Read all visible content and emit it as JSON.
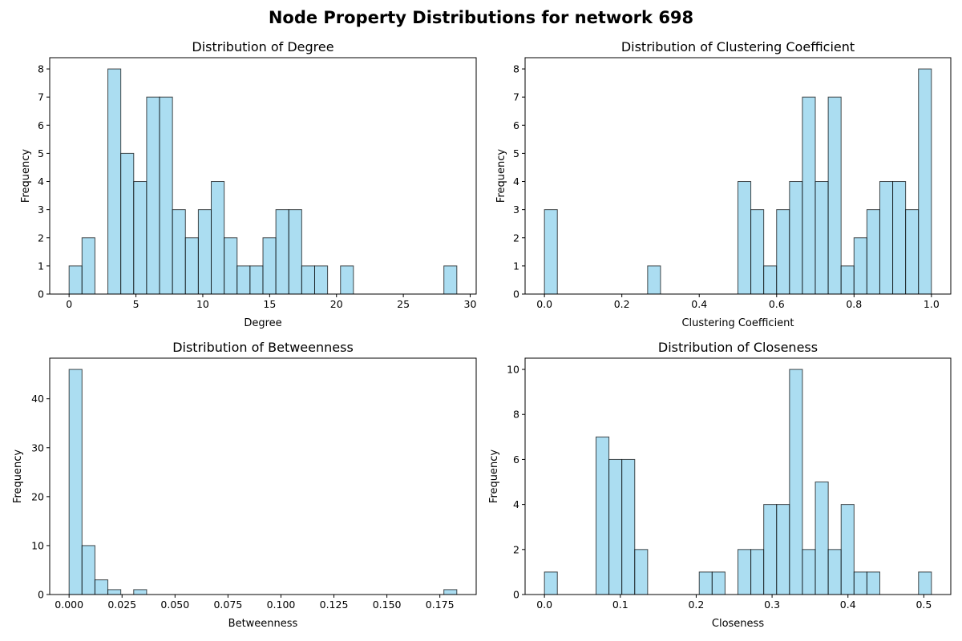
{
  "suptitle": "Node Property Distributions for network 698",
  "style": {
    "bar_fill": "#87ceeb",
    "bar_alpha": 0.7,
    "bar_edge": "#000000"
  },
  "chart_data": [
    {
      "type": "bar",
      "title": "Distribution of Degree",
      "xlabel": "Degree",
      "ylabel": "Frequency",
      "bin_start": 0,
      "bin_width": 0.9667,
      "values": [
        1,
        2,
        0,
        8,
        5,
        4,
        7,
        7,
        3,
        2,
        3,
        4,
        2,
        1,
        1,
        2,
        3,
        3,
        1,
        1,
        0,
        1,
        0,
        0,
        0,
        0,
        0,
        0,
        0,
        1
      ],
      "xlim": [
        -1.45,
        30.45
      ],
      "ylim": [
        0,
        8.4
      ],
      "xticks": [
        0,
        5,
        10,
        15,
        20,
        25,
        30
      ],
      "xtick_labels": [
        "0",
        "5",
        "10",
        "15",
        "20",
        "25",
        "30"
      ],
      "yticks": [
        0,
        1,
        2,
        3,
        4,
        5,
        6,
        7,
        8
      ],
      "ytick_labels": [
        "0",
        "1",
        "2",
        "3",
        "4",
        "5",
        "6",
        "7",
        "8"
      ]
    },
    {
      "type": "bar",
      "title": "Distribution of Clustering Coefficient",
      "xlabel": "Clustering Coefficient",
      "ylabel": "Frequency",
      "bin_start": 0,
      "bin_width": 0.03333,
      "values": [
        3,
        0,
        0,
        0,
        0,
        0,
        0,
        0,
        1,
        0,
        0,
        0,
        0,
        0,
        0,
        4,
        3,
        1,
        3,
        4,
        7,
        4,
        7,
        1,
        2,
        3,
        4,
        4,
        3,
        8
      ],
      "xlim": [
        -0.05,
        1.05
      ],
      "ylim": [
        0,
        8.4
      ],
      "xticks": [
        0,
        0.2,
        0.4,
        0.6,
        0.8,
        1.0
      ],
      "xtick_labels": [
        "0.0",
        "0.2",
        "0.4",
        "0.6",
        "0.8",
        "1.0"
      ],
      "yticks": [
        0,
        1,
        2,
        3,
        4,
        5,
        6,
        7,
        8
      ],
      "ytick_labels": [
        "0",
        "1",
        "2",
        "3",
        "4",
        "5",
        "6",
        "7",
        "8"
      ]
    },
    {
      "type": "bar",
      "title": "Distribution of Betweenness",
      "xlabel": "Betweenness",
      "ylabel": "Frequency",
      "bin_start": 0,
      "bin_width": 0.0061,
      "values": [
        46,
        10,
        3,
        1,
        0,
        1,
        0,
        0,
        0,
        0,
        0,
        0,
        0,
        0,
        0,
        0,
        0,
        0,
        0,
        0,
        0,
        0,
        0,
        0,
        0,
        0,
        0,
        0,
        0,
        1
      ],
      "xlim": [
        -0.00915,
        0.19215
      ],
      "ylim": [
        0,
        48.3
      ],
      "xticks": [
        0,
        0.025,
        0.05,
        0.075,
        0.1,
        0.125,
        0.15,
        0.175
      ],
      "xtick_labels": [
        "0.000",
        "0.025",
        "0.050",
        "0.075",
        "0.100",
        "0.125",
        "0.150",
        "0.175"
      ],
      "yticks": [
        0,
        10,
        20,
        30,
        40
      ],
      "ytick_labels": [
        "0",
        "10",
        "20",
        "30",
        "40"
      ]
    },
    {
      "type": "bar",
      "title": "Distribution of Closeness",
      "xlabel": "Closeness",
      "ylabel": "Frequency",
      "bin_start": 0,
      "bin_width": 0.017,
      "values": [
        1,
        0,
        0,
        0,
        7,
        6,
        6,
        2,
        0,
        0,
        0,
        0,
        1,
        1,
        0,
        2,
        2,
        4,
        4,
        10,
        2,
        5,
        2,
        4,
        1,
        1,
        0,
        0,
        0,
        1
      ],
      "xlim": [
        -0.0255,
        0.5355
      ],
      "ylim": [
        0,
        10.5
      ],
      "xticks": [
        0,
        0.1,
        0.2,
        0.3,
        0.4,
        0.5
      ],
      "xtick_labels": [
        "0.0",
        "0.1",
        "0.2",
        "0.3",
        "0.4",
        "0.5"
      ],
      "yticks": [
        0,
        2,
        4,
        6,
        8,
        10
      ],
      "ytick_labels": [
        "0",
        "2",
        "4",
        "6",
        "8",
        "10"
      ]
    }
  ]
}
